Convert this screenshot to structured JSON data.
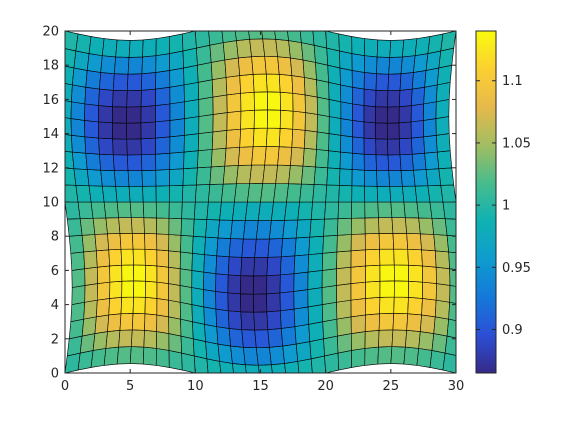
{
  "chart_data": {
    "type": "heatmap",
    "title": "",
    "xlabel": "",
    "ylabel": "",
    "xlim": [
      0,
      30
    ],
    "ylim": [
      0,
      20
    ],
    "x_ticks": [
      "0",
      "5",
      "10",
      "15",
      "20",
      "25",
      "30"
    ],
    "y_ticks": [
      "0",
      "2",
      "4",
      "6",
      "8",
      "10",
      "12",
      "14",
      "16",
      "18",
      "20"
    ],
    "grid": {
      "nx": 30,
      "ny": 20,
      "x_range": [
        0,
        30
      ],
      "y_range": [
        0,
        20
      ],
      "cell_edge_color": "#000000",
      "surface": "distorted mesh, value ≈ 1 + 0.14·sin(2πx/20)·sin(2πy/20)"
    },
    "colorbar": {
      "range": [
        0.865,
        1.14
      ],
      "ticks": [
        "0.9",
        "0.95",
        "1",
        "1.05",
        "1.1"
      ],
      "colormap": "parula",
      "colors": [
        "#352a87",
        "#2c4fd6",
        "#1479d9",
        "#0f9ccf",
        "#0fb2b2",
        "#48bc8c",
        "#a2bd62",
        "#e7b94b",
        "#fbd031",
        "#f9fb0e"
      ]
    }
  }
}
